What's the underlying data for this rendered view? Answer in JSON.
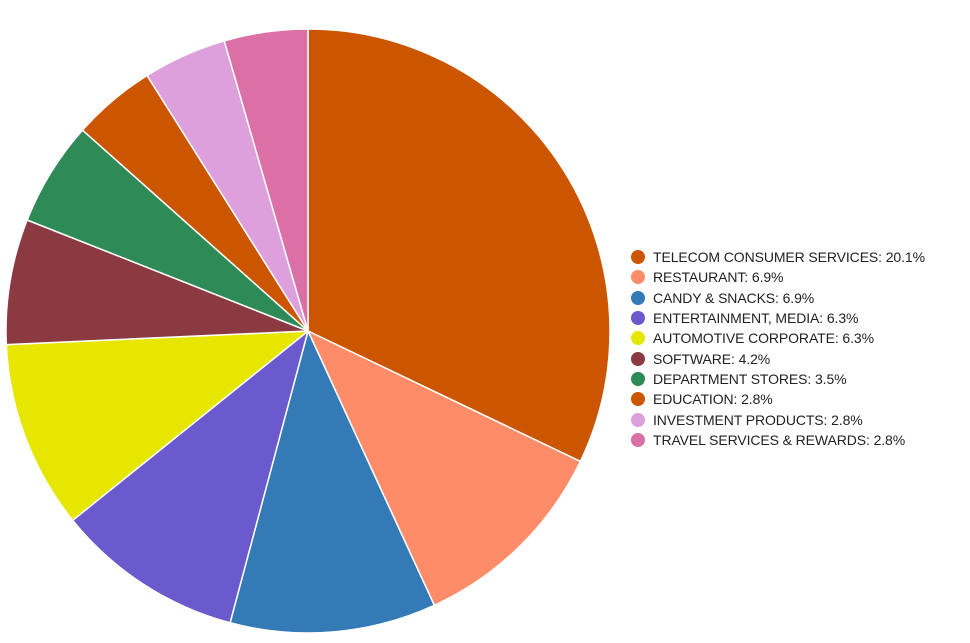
{
  "chart_data": {
    "type": "pie",
    "title": "",
    "legend_position": "right",
    "slices": [
      {
        "label": "TELECOM CONSUMER SERVICES",
        "percent_label": "20.1%",
        "value": 20.1,
        "color": "#cc5500"
      },
      {
        "label": "RESTAURANT",
        "percent_label": "6.9%",
        "value": 6.9,
        "color": "#ff8c69"
      },
      {
        "label": "CANDY & SNACKS",
        "percent_label": "6.9%",
        "value": 6.9,
        "color": "#337ab7"
      },
      {
        "label": "ENTERTAINMENT, MEDIA",
        "percent_label": "6.3%",
        "value": 6.3,
        "color": "#6a5acd"
      },
      {
        "label": "AUTOMOTIVE CORPORATE",
        "percent_label": "6.3%",
        "value": 6.3,
        "color": "#e6e600"
      },
      {
        "label": "SOFTWARE",
        "percent_label": "4.2%",
        "value": 4.2,
        "color": "#8b3a42"
      },
      {
        "label": "DEPARTMENT STORES",
        "percent_label": "3.5%",
        "value": 3.5,
        "color": "#2e8b57"
      },
      {
        "label": "EDUCATION",
        "percent_label": "2.8%",
        "value": 2.8,
        "color": "#cc5500"
      },
      {
        "label": "INVESTMENT PRODUCTS",
        "percent_label": "2.8%",
        "value": 2.8,
        "color": "#dda0dd"
      },
      {
        "label": "TRAVEL SERVICES & REWARDS",
        "percent_label": "2.8%",
        "value": 2.8,
        "color": "#db70a6"
      }
    ]
  }
}
